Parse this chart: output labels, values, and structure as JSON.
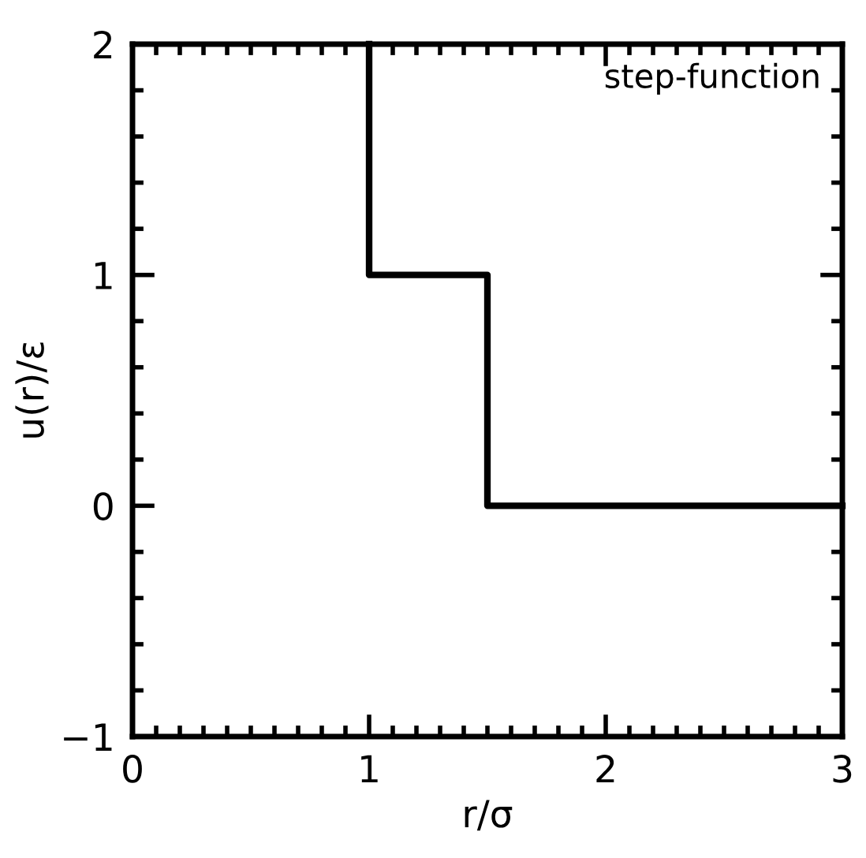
{
  "chart_data": {
    "type": "line",
    "xlabel": "r/σ",
    "ylabel": "u(r)/ε",
    "series": [
      {
        "x": [
          1,
          1,
          1.5,
          1.5,
          3
        ],
        "values": [
          2,
          1,
          1,
          0,
          0
        ],
        "color": "#000000"
      }
    ],
    "xlim": [
      0,
      3
    ],
    "ylim": [
      -1,
      2
    ],
    "xticks": [
      0,
      1,
      2,
      3
    ],
    "yticks": [
      -1,
      0,
      1,
      2
    ],
    "annotations": [
      "step-function"
    ],
    "grid": false,
    "legend": false,
    "line_style": "solid",
    "marker": "none"
  }
}
